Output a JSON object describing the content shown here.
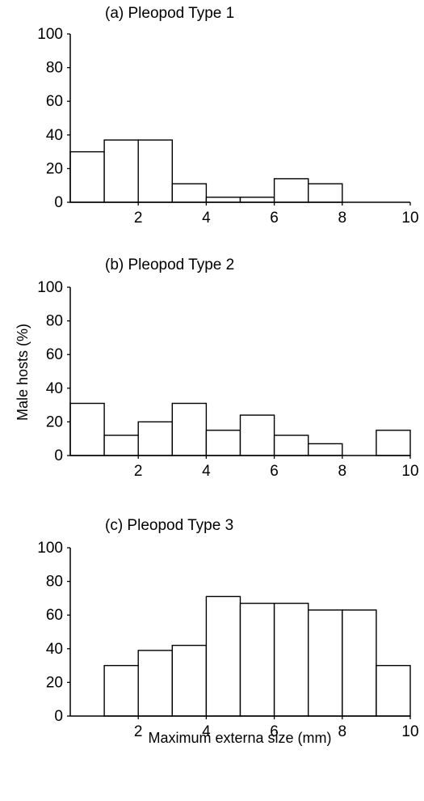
{
  "chart_data": [
    {
      "type": "bar",
      "title": "(a) Pleopod  Type 1",
      "bin_edges": [
        0,
        1,
        2,
        3,
        4,
        5,
        6,
        7,
        8,
        9,
        10
      ],
      "values": [
        30,
        37,
        37,
        11,
        3,
        3,
        14,
        11,
        0,
        0
      ],
      "xlim": [
        0,
        10
      ],
      "ylim": [
        0,
        100
      ],
      "xticks": [
        "2",
        "4",
        "6",
        "8",
        "10"
      ],
      "yticks": [
        "0",
        "20",
        "40",
        "60",
        "80",
        "100"
      ],
      "xlabel": "",
      "ylabel": ""
    },
    {
      "type": "bar",
      "title": "(b) Pleopod  Type 2",
      "bin_edges": [
        0,
        1,
        2,
        3,
        4,
        5,
        6,
        7,
        8,
        9,
        10
      ],
      "values": [
        31,
        12,
        20,
        31,
        15,
        24,
        12,
        7,
        0,
        15
      ],
      "xlim": [
        0,
        10
      ],
      "ylim": [
        0,
        100
      ],
      "xticks": [
        "2",
        "4",
        "6",
        "8",
        "10"
      ],
      "yticks": [
        "0",
        "20",
        "40",
        "60",
        "80",
        "100"
      ],
      "xlabel": "",
      "ylabel": "Male hosts (%)"
    },
    {
      "type": "bar",
      "title": "(c) Pleopod  Type 3",
      "bin_edges": [
        0,
        1,
        2,
        3,
        4,
        5,
        6,
        7,
        8,
        9,
        10
      ],
      "values": [
        0,
        30,
        39,
        42,
        71,
        67,
        67,
        63,
        63,
        30
      ],
      "xlim": [
        0,
        10
      ],
      "ylim": [
        0,
        100
      ],
      "xticks": [
        "2",
        "4",
        "6",
        "8",
        "10"
      ],
      "yticks": [
        "0",
        "20",
        "40",
        "60",
        "80",
        "100"
      ],
      "xlabel": "Maximum externa size (mm)",
      "ylabel": ""
    }
  ]
}
